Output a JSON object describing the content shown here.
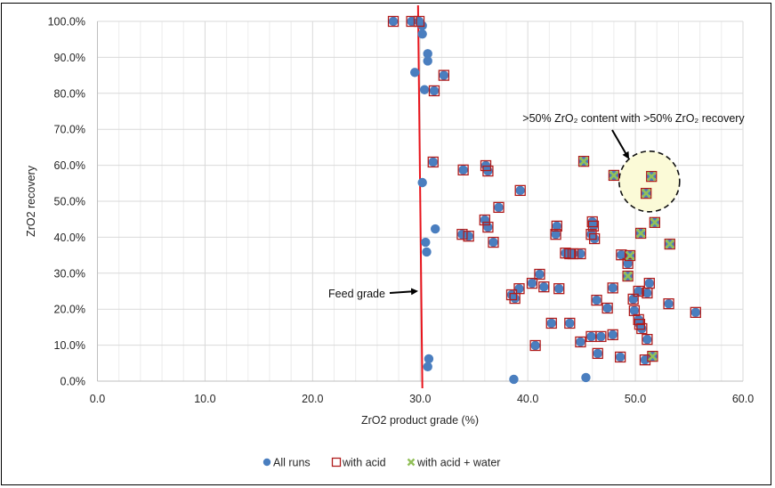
{
  "chart_data": {
    "type": "scatter",
    "title": "",
    "xlabel": "ZrO2 product grade (%)",
    "ylabel": "ZrO2 recovery",
    "xlim": [
      0,
      60
    ],
    "ylim": [
      0,
      100
    ],
    "x_ticks": [
      "0.0",
      "10.0",
      "20.0",
      "30.0",
      "40.0",
      "50.0",
      "60.0"
    ],
    "y_ticks": [
      "0.0%",
      "10.0%",
      "20.0%",
      "30.0%",
      "40.0%",
      "50.0%",
      "60.0%",
      "70.0%",
      "80.0%",
      "90.0%",
      "100.0%"
    ],
    "grid": true,
    "legend_position": "bottom",
    "legend": [
      {
        "name": "All runs",
        "marker": "circle",
        "color": "#4a7ebf"
      },
      {
        "name": "with acid",
        "marker": "square-open",
        "color": "#b01c1c"
      },
      {
        "name": "with acid + water",
        "marker": "x",
        "color": "#92c05a"
      }
    ],
    "series": [
      {
        "name": "All runs",
        "points": [
          [
            27.5,
            100
          ],
          [
            29.2,
            100
          ],
          [
            29.9,
            100
          ],
          [
            30.2,
            98.8
          ],
          [
            30.2,
            96.5
          ],
          [
            30.7,
            91
          ],
          [
            30.7,
            89
          ],
          [
            29.5,
            85.8
          ],
          [
            32.2,
            85
          ],
          [
            30.4,
            81
          ],
          [
            31.3,
            80.7
          ],
          [
            31.2,
            60.9
          ],
          [
            34.0,
            58.7
          ],
          [
            36.1,
            59.9
          ],
          [
            36.3,
            58.4
          ],
          [
            30.2,
            55.2
          ],
          [
            39.3,
            53.0
          ],
          [
            37.3,
            48.3
          ],
          [
            36.0,
            44.8
          ],
          [
            36.3,
            42.8
          ],
          [
            31.4,
            42.3
          ],
          [
            33.9,
            40.8
          ],
          [
            34.5,
            40.3
          ],
          [
            36.8,
            38.6
          ],
          [
            30.5,
            38.6
          ],
          [
            30.6,
            35.9
          ],
          [
            42.7,
            43.1
          ],
          [
            42.6,
            40.8
          ],
          [
            46.0,
            44.3
          ],
          [
            46.1,
            43.1
          ],
          [
            45.9,
            40.8
          ],
          [
            46.2,
            39.6
          ],
          [
            43.5,
            35.6
          ],
          [
            43.9,
            35.4
          ],
          [
            44.2,
            35.4
          ],
          [
            44.9,
            35.4
          ],
          [
            41.1,
            29.7
          ],
          [
            40.4,
            27.2
          ],
          [
            41.5,
            26.2
          ],
          [
            39.2,
            25.7
          ],
          [
            38.5,
            24.0
          ],
          [
            38.8,
            23.0
          ],
          [
            42.9,
            25.7
          ],
          [
            46.4,
            22.5
          ],
          [
            48.0,
            57.2
          ],
          [
            51.5,
            56.9
          ],
          [
            51.0,
            52.2
          ],
          [
            51.8,
            44.1
          ],
          [
            50.5,
            41.1
          ],
          [
            53.2,
            38.1
          ],
          [
            49.5,
            34.9
          ],
          [
            45.2,
            61.1
          ],
          [
            48.7,
            35.1
          ],
          [
            49.3,
            32.7
          ],
          [
            49.3,
            29.2
          ],
          [
            51.3,
            27.2
          ],
          [
            47.9,
            25.9
          ],
          [
            50.3,
            25.0
          ],
          [
            51.1,
            24.5
          ],
          [
            49.8,
            22.8
          ],
          [
            53.1,
            21.5
          ],
          [
            55.6,
            19.1
          ],
          [
            49.9,
            19.6
          ],
          [
            47.4,
            20.3
          ],
          [
            50.3,
            17.1
          ],
          [
            50.4,
            15.8
          ],
          [
            50.6,
            14.6
          ],
          [
            51.1,
            11.6
          ],
          [
            45.9,
            12.4
          ],
          [
            46.8,
            12.4
          ],
          [
            47.9,
            12.9
          ],
          [
            48.6,
            6.7
          ],
          [
            50.9,
            5.9
          ],
          [
            51.6,
            6.9
          ],
          [
            42.2,
            16.1
          ],
          [
            43.9,
            16.1
          ],
          [
            40.7,
            9.9
          ],
          [
            44.9,
            10.9
          ],
          [
            46.5,
            7.7
          ],
          [
            45.4,
            1.0
          ],
          [
            30.8,
            6.2
          ],
          [
            30.7,
            4.0
          ],
          [
            38.7,
            0.5
          ]
        ]
      },
      {
        "name": "with acid",
        "points": [
          [
            27.5,
            100
          ],
          [
            29.2,
            100
          ],
          [
            29.9,
            100
          ],
          [
            32.2,
            85
          ],
          [
            31.3,
            80.7
          ],
          [
            31.2,
            60.9
          ],
          [
            34.0,
            58.7
          ],
          [
            36.1,
            59.9
          ],
          [
            36.3,
            58.4
          ],
          [
            39.3,
            53.0
          ],
          [
            37.3,
            48.3
          ],
          [
            36.0,
            44.8
          ],
          [
            36.3,
            42.8
          ],
          [
            33.9,
            40.8
          ],
          [
            34.5,
            40.3
          ],
          [
            36.8,
            38.6
          ],
          [
            42.7,
            43.1
          ],
          [
            42.6,
            40.8
          ],
          [
            46.0,
            44.3
          ],
          [
            46.1,
            43.1
          ],
          [
            45.9,
            40.8
          ],
          [
            46.2,
            39.6
          ],
          [
            43.5,
            35.6
          ],
          [
            43.9,
            35.4
          ],
          [
            44.2,
            35.4
          ],
          [
            44.9,
            35.4
          ],
          [
            41.1,
            29.7
          ],
          [
            40.4,
            27.2
          ],
          [
            41.5,
            26.2
          ],
          [
            39.2,
            25.7
          ],
          [
            38.5,
            24.0
          ],
          [
            38.8,
            23.0
          ],
          [
            42.9,
            25.7
          ],
          [
            46.4,
            22.5
          ],
          [
            48.0,
            57.2
          ],
          [
            51.5,
            56.9
          ],
          [
            51.0,
            52.2
          ],
          [
            51.8,
            44.1
          ],
          [
            50.5,
            41.1
          ],
          [
            53.2,
            38.1
          ],
          [
            49.5,
            34.9
          ],
          [
            45.2,
            61.1
          ],
          [
            48.7,
            35.1
          ],
          [
            49.3,
            32.7
          ],
          [
            49.3,
            29.2
          ],
          [
            51.3,
            27.2
          ],
          [
            47.9,
            25.9
          ],
          [
            50.3,
            25.0
          ],
          [
            51.1,
            24.5
          ],
          [
            49.8,
            22.8
          ],
          [
            53.1,
            21.5
          ],
          [
            55.6,
            19.1
          ],
          [
            49.9,
            19.6
          ],
          [
            47.4,
            20.3
          ],
          [
            50.3,
            17.1
          ],
          [
            50.4,
            15.8
          ],
          [
            50.6,
            14.6
          ],
          [
            51.1,
            11.6
          ],
          [
            45.9,
            12.4
          ],
          [
            46.8,
            12.4
          ],
          [
            47.9,
            12.9
          ],
          [
            48.6,
            6.7
          ],
          [
            50.9,
            5.9
          ],
          [
            51.6,
            6.9
          ],
          [
            42.2,
            16.1
          ],
          [
            43.9,
            16.1
          ],
          [
            40.7,
            9.9
          ],
          [
            44.9,
            10.9
          ],
          [
            46.5,
            7.7
          ]
        ]
      },
      {
        "name": "with acid + water",
        "points": [
          [
            45.2,
            61.1
          ],
          [
            48.0,
            57.2
          ],
          [
            51.5,
            56.9
          ],
          [
            51.0,
            52.2
          ],
          [
            51.8,
            44.1
          ],
          [
            50.5,
            41.1
          ],
          [
            53.2,
            38.1
          ],
          [
            49.5,
            34.9
          ],
          [
            49.3,
            29.2
          ],
          [
            51.6,
            6.9
          ]
        ]
      }
    ],
    "reference_lines": [
      {
        "name": "Feed grade",
        "x_top": 29.8,
        "x_bottom": 30.2,
        "color": "#e8141c"
      }
    ],
    "annotations": [
      {
        "text": ">50% ZrO₂ content with >50% ZrO₂ recovery",
        "target": "highlight-circle"
      },
      {
        "text": "Feed grade",
        "target": "feed-grade-line"
      }
    ],
    "highlight_region": {
      "x_center": 51.3,
      "y_center": 55.5,
      "fill": "#fbfad7",
      "stroke": "#111111",
      "style": "dashed"
    }
  }
}
